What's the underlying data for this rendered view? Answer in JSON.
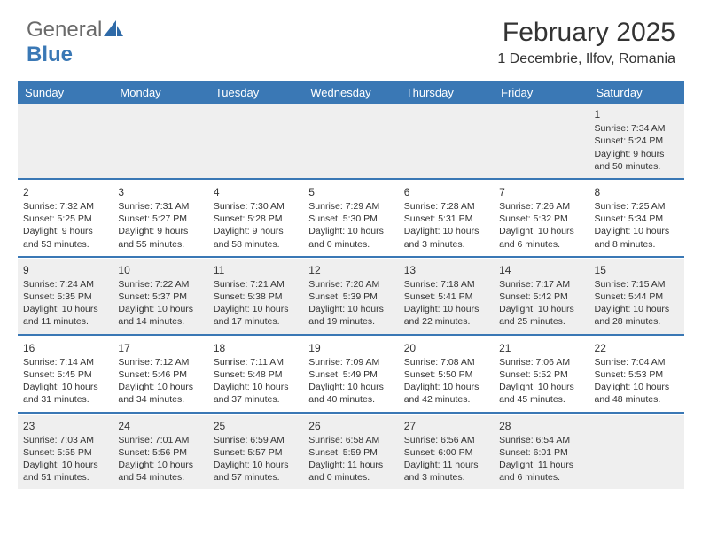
{
  "logo": {
    "text1": "General",
    "text2": "Blue"
  },
  "title": "February 2025",
  "location": "1 Decembrie, Ilfov, Romania",
  "colors": {
    "header_bg": "#3a78b5",
    "header_text": "#ffffff",
    "row_alt_bg": "#efefef",
    "separator": "#3a78b5",
    "text": "#333333"
  },
  "weekdays": [
    "Sunday",
    "Monday",
    "Tuesday",
    "Wednesday",
    "Thursday",
    "Friday",
    "Saturday"
  ],
  "weeks": [
    [
      null,
      null,
      null,
      null,
      null,
      null,
      {
        "d": "1",
        "sr": "7:34 AM",
        "ss": "5:24 PM",
        "dl": "9 hours and 50 minutes."
      }
    ],
    [
      {
        "d": "2",
        "sr": "7:32 AM",
        "ss": "5:25 PM",
        "dl": "9 hours and 53 minutes."
      },
      {
        "d": "3",
        "sr": "7:31 AM",
        "ss": "5:27 PM",
        "dl": "9 hours and 55 minutes."
      },
      {
        "d": "4",
        "sr": "7:30 AM",
        "ss": "5:28 PM",
        "dl": "9 hours and 58 minutes."
      },
      {
        "d": "5",
        "sr": "7:29 AM",
        "ss": "5:30 PM",
        "dl": "10 hours and 0 minutes."
      },
      {
        "d": "6",
        "sr": "7:28 AM",
        "ss": "5:31 PM",
        "dl": "10 hours and 3 minutes."
      },
      {
        "d": "7",
        "sr": "7:26 AM",
        "ss": "5:32 PM",
        "dl": "10 hours and 6 minutes."
      },
      {
        "d": "8",
        "sr": "7:25 AM",
        "ss": "5:34 PM",
        "dl": "10 hours and 8 minutes."
      }
    ],
    [
      {
        "d": "9",
        "sr": "7:24 AM",
        "ss": "5:35 PM",
        "dl": "10 hours and 11 minutes."
      },
      {
        "d": "10",
        "sr": "7:22 AM",
        "ss": "5:37 PM",
        "dl": "10 hours and 14 minutes."
      },
      {
        "d": "11",
        "sr": "7:21 AM",
        "ss": "5:38 PM",
        "dl": "10 hours and 17 minutes."
      },
      {
        "d": "12",
        "sr": "7:20 AM",
        "ss": "5:39 PM",
        "dl": "10 hours and 19 minutes."
      },
      {
        "d": "13",
        "sr": "7:18 AM",
        "ss": "5:41 PM",
        "dl": "10 hours and 22 minutes."
      },
      {
        "d": "14",
        "sr": "7:17 AM",
        "ss": "5:42 PM",
        "dl": "10 hours and 25 minutes."
      },
      {
        "d": "15",
        "sr": "7:15 AM",
        "ss": "5:44 PM",
        "dl": "10 hours and 28 minutes."
      }
    ],
    [
      {
        "d": "16",
        "sr": "7:14 AM",
        "ss": "5:45 PM",
        "dl": "10 hours and 31 minutes."
      },
      {
        "d": "17",
        "sr": "7:12 AM",
        "ss": "5:46 PM",
        "dl": "10 hours and 34 minutes."
      },
      {
        "d": "18",
        "sr": "7:11 AM",
        "ss": "5:48 PM",
        "dl": "10 hours and 37 minutes."
      },
      {
        "d": "19",
        "sr": "7:09 AM",
        "ss": "5:49 PM",
        "dl": "10 hours and 40 minutes."
      },
      {
        "d": "20",
        "sr": "7:08 AM",
        "ss": "5:50 PM",
        "dl": "10 hours and 42 minutes."
      },
      {
        "d": "21",
        "sr": "7:06 AM",
        "ss": "5:52 PM",
        "dl": "10 hours and 45 minutes."
      },
      {
        "d": "22",
        "sr": "7:04 AM",
        "ss": "5:53 PM",
        "dl": "10 hours and 48 minutes."
      }
    ],
    [
      {
        "d": "23",
        "sr": "7:03 AM",
        "ss": "5:55 PM",
        "dl": "10 hours and 51 minutes."
      },
      {
        "d": "24",
        "sr": "7:01 AM",
        "ss": "5:56 PM",
        "dl": "10 hours and 54 minutes."
      },
      {
        "d": "25",
        "sr": "6:59 AM",
        "ss": "5:57 PM",
        "dl": "10 hours and 57 minutes."
      },
      {
        "d": "26",
        "sr": "6:58 AM",
        "ss": "5:59 PM",
        "dl": "11 hours and 0 minutes."
      },
      {
        "d": "27",
        "sr": "6:56 AM",
        "ss": "6:00 PM",
        "dl": "11 hours and 3 minutes."
      },
      {
        "d": "28",
        "sr": "6:54 AM",
        "ss": "6:01 PM",
        "dl": "11 hours and 6 minutes."
      },
      null
    ]
  ],
  "labels": {
    "sunrise": "Sunrise:",
    "sunset": "Sunset:",
    "daylight": "Daylight:"
  }
}
